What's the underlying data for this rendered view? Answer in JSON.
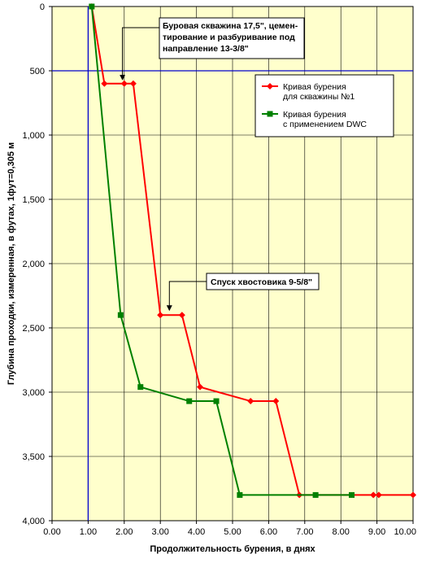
{
  "chart_data": {
    "type": "line",
    "xlabel": "Продолжительность бурения, в днях",
    "ylabel": "Глубина проходки, измеренная, в футах, 1фут=0,305 м",
    "xlim": [
      0,
      10
    ],
    "ylim": [
      0,
      4000
    ],
    "y_inverted": true,
    "x_ticks": [
      "0.00",
      "1.00",
      "2.00",
      "3.00",
      "4.00",
      "5.00",
      "6.00",
      "7.00",
      "8.00",
      "9.00",
      "10.00"
    ],
    "y_ticks": [
      "0",
      "500",
      "1,000",
      "1,500",
      "2,000",
      "2,500",
      "3,000",
      "3,500",
      "4,000"
    ],
    "grid": true,
    "background_color": "#ffffcc",
    "series": [
      {
        "name": "Кривая бурения для скважины №1",
        "legend_lines": [
          "Кривая бурения",
          "для скважины №1"
        ],
        "color": "#ff0000",
        "marker": "diamond",
        "points": [
          [
            1.1,
            0
          ],
          [
            1.45,
            600
          ],
          [
            2.0,
            600
          ],
          [
            2.25,
            600
          ],
          [
            3.0,
            2400
          ],
          [
            3.6,
            2400
          ],
          [
            4.1,
            2960
          ],
          [
            5.5,
            3070
          ],
          [
            6.2,
            3070
          ],
          [
            6.85,
            3800
          ],
          [
            8.9,
            3800
          ],
          [
            9.05,
            3800
          ],
          [
            10.0,
            3800
          ]
        ]
      },
      {
        "name": "Кривая бурения с применением DWC",
        "legend_lines": [
          "Кривая бурения",
          "с применением DWC"
        ],
        "color": "#008000",
        "marker": "square",
        "points": [
          [
            1.1,
            0
          ],
          [
            1.9,
            2400
          ],
          [
            2.45,
            2960
          ],
          [
            3.8,
            3070
          ],
          [
            4.55,
            3070
          ],
          [
            5.2,
            3800
          ],
          [
            7.3,
            3800
          ],
          [
            8.3,
            3800
          ]
        ]
      }
    ],
    "annotations": [
      {
        "lines": [
          "Буровая скважина 17,5\", цемен-",
          "тирование и разбуривание под",
          "направление 13-3/8\""
        ],
        "target": [
          1.95,
          600
        ]
      },
      {
        "lines": [
          "Спуск хвостовика 9-5/8\""
        ],
        "target": [
          3.25,
          2400
        ]
      }
    ],
    "reference_line_y": 500,
    "reference_line_x": 1.0
  }
}
